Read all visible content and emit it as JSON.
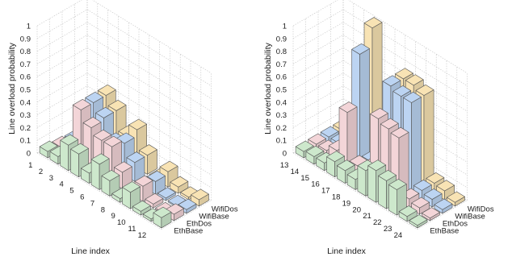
{
  "chart_data": [
    {
      "type": "bar3d",
      "xlabel": "Line index",
      "ylabel": "Line overload probability",
      "zlim": [
        0,
        1
      ],
      "zticks": [
        "0",
        "0.1",
        "0.2",
        "0.3",
        "0.4",
        "0.5",
        "0.6",
        "0.7",
        "0.8",
        "0.9",
        "1"
      ],
      "categories": [
        "1",
        "2",
        "3",
        "4",
        "5",
        "6",
        "7",
        "8",
        "9",
        "10",
        "11",
        "12"
      ],
      "series_labels": [
        "EthBase",
        "EthDos",
        "WifiBase",
        "WifiDos"
      ],
      "series": [
        {
          "name": "EthBase",
          "color": "#cde8cc",
          "values": [
            0.05,
            0.06,
            0.2,
            0.18,
            0.08,
            0.2,
            0.12,
            0.03,
            0.13,
            0.03,
            0.02,
            0.08
          ]
        },
        {
          "name": "EthDos",
          "color": "#f3d5d8",
          "values": [
            0.03,
            0.03,
            0.42,
            0.33,
            0.28,
            0.28,
            0.13,
            0.01,
            0.12,
            0.03,
            0.01,
            0.05
          ]
        },
        {
          "name": "WifiBase",
          "color": "#bcd4f2",
          "values": [
            0.02,
            0.02,
            0.42,
            0.35,
            0.2,
            0.25,
            0.15,
            0.01,
            0.1,
            0.02,
            0.01,
            0.03
          ]
        },
        {
          "name": "WifiDos",
          "color": "#f8e3b4",
          "values": [
            0.02,
            0.03,
            0.42,
            0.35,
            0.2,
            0.3,
            0.15,
            0.01,
            0.12,
            0.05,
            0.02,
            0.05
          ]
        }
      ]
    },
    {
      "type": "bar3d",
      "xlabel": "Line index",
      "ylabel": "Line overload probability",
      "zlim": [
        0,
        1
      ],
      "zticks": [
        "0",
        "0.1",
        "0.2",
        "0.3",
        "0.4",
        "0.5",
        "0.6",
        "0.7",
        "0.8",
        "0.9",
        "1"
      ],
      "categories": [
        "13",
        "14",
        "15",
        "16",
        "17",
        "18",
        "19",
        "20",
        "21",
        "22",
        "23",
        "24"
      ],
      "series_labels": [
        "EthBase",
        "EthDos",
        "WifiBase",
        "WifiDos"
      ],
      "series": [
        {
          "name": "EthBase",
          "color": "#cde8cc",
          "values": [
            0.05,
            0.06,
            0.06,
            0.12,
            0.1,
            0.08,
            0.2,
            0.25,
            0.22,
            0.2,
            0.04,
            0.02
          ]
        },
        {
          "name": "EthDos",
          "color": "#f3d5d8",
          "values": [
            0.05,
            0.05,
            0.1,
            0.45,
            0.08,
            0.1,
            0.55,
            0.52,
            0.5,
            0.07,
            0.05,
            0.02
          ]
        },
        {
          "name": "WifiBase",
          "color": "#bcd4f2",
          "values": [
            0.05,
            0.05,
            0.08,
            0.85,
            0.06,
            0.1,
            0.75,
            0.72,
            0.72,
            0.08,
            0.06,
            0.03
          ]
        },
        {
          "name": "WifiDos",
          "color": "#f8e3b4",
          "values": [
            0.05,
            0.05,
            0.08,
            1.0,
            0.06,
            0.1,
            0.75,
            0.75,
            0.72,
            0.08,
            0.07,
            0.03
          ]
        }
      ]
    }
  ]
}
